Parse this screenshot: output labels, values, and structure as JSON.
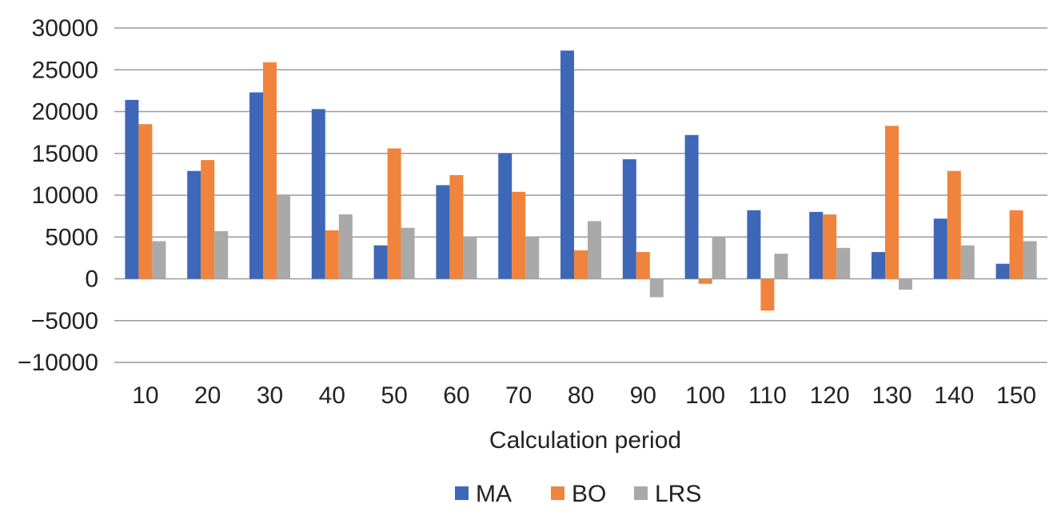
{
  "chart_data": {
    "type": "bar",
    "title": "",
    "xlabel": "Calculation period",
    "ylabel": "",
    "ylim": [
      -10000,
      30000
    ],
    "yticks": [
      30000,
      25000,
      20000,
      15000,
      10000,
      5000,
      0,
      -5000,
      -10000
    ],
    "ytick_labels": [
      "30000",
      "25000",
      "20000",
      "15000",
      "10000",
      "5000",
      "0",
      "−5000",
      "−10000"
    ],
    "categories": [
      "10",
      "20",
      "30",
      "40",
      "50",
      "60",
      "70",
      "80",
      "90",
      "100",
      "110",
      "120",
      "130",
      "140",
      "150"
    ],
    "grid": true,
    "legend_position": "bottom",
    "series": [
      {
        "name": "MA",
        "color": "#3F67B8",
        "values": [
          21400,
          12900,
          22300,
          20300,
          4000,
          11200,
          15000,
          27300,
          14300,
          17200,
          8200,
          8000,
          3200,
          7200,
          1800
        ]
      },
      {
        "name": "BO",
        "color": "#F0843C",
        "values": [
          18500,
          14200,
          25900,
          5800,
          15600,
          12400,
          10400,
          3400,
          3200,
          -600,
          -3800,
          7700,
          18300,
          12900,
          8200
        ]
      },
      {
        "name": "LRS",
        "color": "#A9A9A9",
        "values": [
          4500,
          5700,
          10000,
          7700,
          6100,
          5000,
          5000,
          6900,
          -2200,
          5000,
          3000,
          3700,
          -1300,
          4000,
          4500
        ]
      }
    ]
  }
}
